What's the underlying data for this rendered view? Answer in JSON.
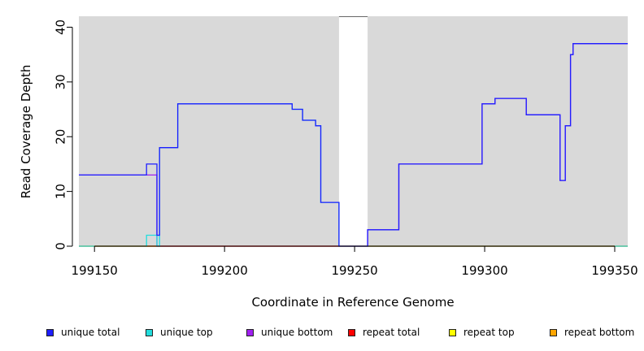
{
  "chart_data": {
    "type": "line",
    "title": "",
    "xlabel": "Coordinate in Reference Genome",
    "ylabel": "Read Coverage Depth",
    "xlim": [
      199144,
      199355
    ],
    "ylim": [
      0,
      42
    ],
    "xticks": [
      199150,
      199200,
      199250,
      199300,
      199350
    ],
    "yticks": [
      0,
      10,
      20,
      30,
      40
    ],
    "plot_background": "#d9d9d9",
    "gap_region": [
      199244,
      199255
    ],
    "grid": false,
    "legend_position": "bottom",
    "series": [
      {
        "name": "unique total",
        "color": "#1e1eff",
        "points": [
          [
            199144,
            13
          ],
          [
            199170,
            13
          ],
          [
            199170,
            15
          ],
          [
            199174,
            15
          ],
          [
            199174,
            2
          ],
          [
            199175,
            2
          ],
          [
            199175,
            18
          ],
          [
            199182,
            18
          ],
          [
            199182,
            26
          ],
          [
            199226,
            26
          ],
          [
            199226,
            25
          ],
          [
            199230,
            25
          ],
          [
            199230,
            23
          ],
          [
            199235,
            23
          ],
          [
            199235,
            22
          ],
          [
            199237,
            22
          ],
          [
            199237,
            8
          ],
          [
            199244,
            8
          ],
          [
            199244,
            0
          ],
          [
            199255,
            0
          ],
          [
            199255,
            3
          ],
          [
            199267,
            3
          ],
          [
            199267,
            15
          ],
          [
            199299,
            15
          ],
          [
            199299,
            26
          ],
          [
            199304,
            26
          ],
          [
            199304,
            27
          ],
          [
            199316,
            27
          ],
          [
            199316,
            24
          ],
          [
            199329,
            24
          ],
          [
            199329,
            12
          ],
          [
            199331,
            12
          ],
          [
            199331,
            22
          ],
          [
            199333,
            22
          ],
          [
            199333,
            35
          ],
          [
            199334,
            35
          ],
          [
            199334,
            37
          ],
          [
            199355,
            37
          ]
        ]
      },
      {
        "name": "unique top",
        "color": "#22dddd",
        "points": [
          [
            199144,
            0
          ],
          [
            199170,
            0
          ],
          [
            199170,
            2
          ],
          [
            199174,
            2
          ],
          [
            199174,
            0
          ],
          [
            199175,
            0
          ],
          [
            199175,
            18
          ],
          [
            199182,
            18
          ],
          [
            199182,
            26
          ],
          [
            199226,
            26
          ],
          [
            199226,
            25
          ],
          [
            199230,
            25
          ],
          [
            199230,
            23
          ],
          [
            199235,
            23
          ],
          [
            199235,
            22
          ],
          [
            199237,
            22
          ],
          [
            199237,
            8
          ],
          [
            199244,
            8
          ],
          [
            199244,
            0
          ],
          [
            199255,
            0
          ],
          [
            199355,
            0
          ]
        ]
      },
      {
        "name": "unique bottom",
        "color": "#a020f0",
        "points": [
          [
            199144,
            13
          ],
          [
            199170,
            13
          ],
          [
            199174,
            13
          ],
          [
            199174,
            0
          ],
          [
            199244,
            0
          ],
          [
            199255,
            0
          ],
          [
            199255,
            3
          ],
          [
            199267,
            3
          ],
          [
            199267,
            15
          ],
          [
            199299,
            15
          ],
          [
            199299,
            26
          ],
          [
            199304,
            26
          ],
          [
            199304,
            27
          ],
          [
            199316,
            27
          ],
          [
            199316,
            24
          ],
          [
            199329,
            24
          ],
          [
            199329,
            12
          ],
          [
            199331,
            12
          ],
          [
            199331,
            22
          ],
          [
            199333,
            22
          ],
          [
            199333,
            35
          ],
          [
            199334,
            35
          ],
          [
            199334,
            37
          ],
          [
            199355,
            37
          ]
        ]
      },
      {
        "name": "repeat total",
        "color": "#ff0000",
        "points": [
          [
            199144,
            0
          ],
          [
            199355,
            0
          ]
        ]
      },
      {
        "name": "repeat top",
        "color": "#ffff00",
        "points": [
          [
            199144,
            0
          ],
          [
            199355,
            0
          ]
        ]
      },
      {
        "name": "repeat bottom",
        "color": "#ffa500",
        "points": [
          [
            199144,
            0
          ],
          [
            199355,
            0
          ]
        ]
      }
    ]
  }
}
